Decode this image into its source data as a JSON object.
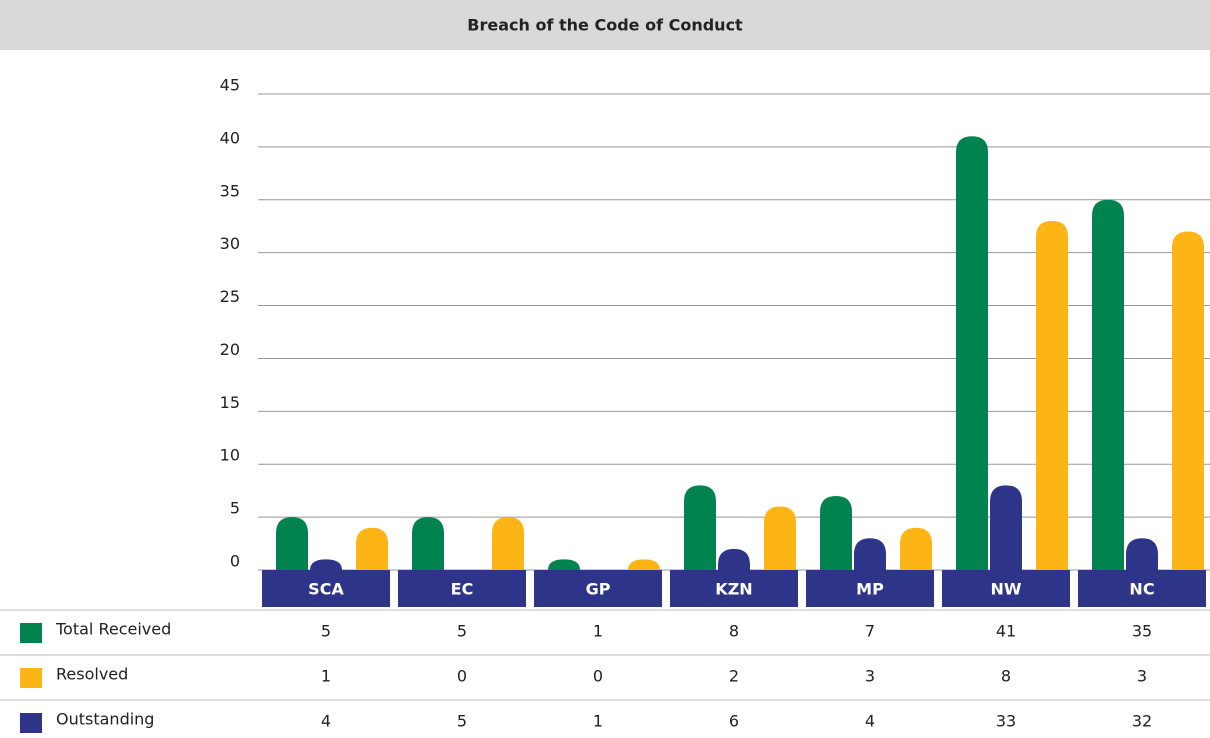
{
  "chart_data": {
    "type": "bar",
    "title": "Breach of the Code of Conduct",
    "categories": [
      "SCA",
      "EC",
      "GP",
      "KZN",
      "MP",
      "NW",
      "NC"
    ],
    "series": [
      {
        "name": "Total Received",
        "color": "#00834f",
        "bar_color": "#00834f",
        "values": [
          5,
          5,
          1,
          8,
          7,
          41,
          35
        ]
      },
      {
        "name": "Resolved",
        "color": "#fdb515",
        "bar_color": "#2e3588",
        "values": [
          1,
          0,
          0,
          2,
          3,
          8,
          3
        ]
      },
      {
        "name": "Outstanding",
        "color": "#2e3588",
        "bar_color": "#fdb515",
        "values": [
          4,
          5,
          1,
          6,
          4,
          33,
          32
        ]
      }
    ],
    "ylim": [
      0,
      45
    ],
    "yticks": [
      0,
      5,
      10,
      15,
      20,
      25,
      30,
      35,
      40,
      45
    ],
    "grid": true
  }
}
